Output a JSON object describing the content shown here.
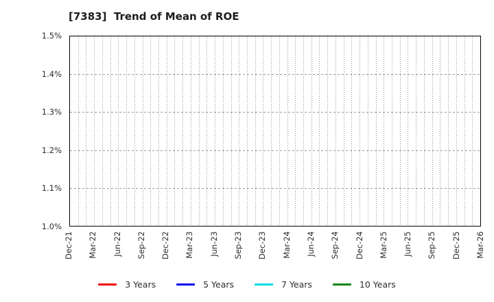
{
  "chart": {
    "title": "[7383]  Trend of Mean of ROE"
  },
  "chart_data": {
    "type": "line",
    "title": "[7383]  Trend of Mean of ROE",
    "x_axis": {
      "tick_labels": [
        "Dec-21",
        "Mar-22",
        "Jun-22",
        "Sep-22",
        "Dec-22",
        "Mar-23",
        "Jun-23",
        "Sep-23",
        "Dec-23",
        "Mar-24",
        "Jun-24",
        "Sep-24",
        "Dec-24",
        "Mar-25",
        "Jun-25",
        "Sep-25",
        "Dec-25",
        "Mar-26"
      ],
      "tick_month_positions": [
        0,
        3,
        6,
        9,
        12,
        15,
        18,
        21,
        24,
        27,
        30,
        33,
        36,
        39,
        42,
        45,
        48,
        51
      ],
      "total_months": 51,
      "minor_gridline_interval_months": 1
    },
    "y_axis": {
      "tick_labels": [
        "1.0%",
        "1.1%",
        "1.2%",
        "1.3%",
        "1.4%",
        "1.5%"
      ],
      "tick_values": [
        1.0,
        1.1,
        1.2,
        1.3,
        1.4,
        1.5
      ],
      "min": 1.0,
      "max": 1.5,
      "unit": "%",
      "gridline_values": [
        1.1,
        1.2,
        1.3,
        1.4
      ]
    },
    "grid": {
      "vertical_style": "dotted",
      "horizontal_style": "dashed",
      "color": "#999999"
    },
    "legend": {
      "position": "bottom-center",
      "entries": [
        {
          "label": "3 Years",
          "color": "#ee0000"
        },
        {
          "label": "5 Years",
          "color": "#0000ee"
        },
        {
          "label": "7 Years",
          "color": "#00dde4"
        },
        {
          "label": "10 Years",
          "color": "#0e820e"
        }
      ]
    },
    "series": [
      {
        "name": "3 Years",
        "color": "#ee0000",
        "x": [],
        "values": []
      },
      {
        "name": "5 Years",
        "color": "#0000ee",
        "x": [],
        "values": []
      },
      {
        "name": "7 Years",
        "color": "#00dde4",
        "x": [],
        "values": []
      },
      {
        "name": "10 Years",
        "color": "#0e820e",
        "x": [],
        "values": []
      }
    ],
    "plotted_points_visible": false
  }
}
